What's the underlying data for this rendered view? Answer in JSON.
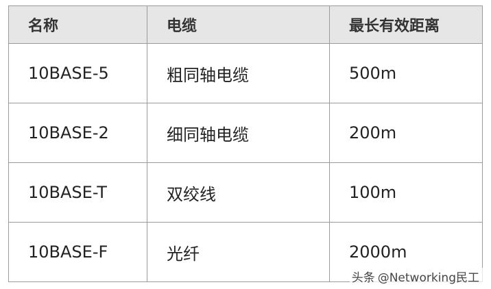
{
  "table": {
    "header": [
      "名称",
      "电缆",
      "最长有效距离"
    ],
    "rows": [
      [
        "10BASE-5",
        "粗同轴电缆",
        "500m"
      ],
      [
        "10BASE-2",
        "细同轴电缆",
        "200m"
      ],
      [
        "10BASE-T",
        "双绞线",
        "100m"
      ],
      [
        "10BASE-F",
        "光纤",
        "2000m"
      ]
    ]
  },
  "watermark": {
    "source": "头条",
    "account": "@Networking民工"
  }
}
